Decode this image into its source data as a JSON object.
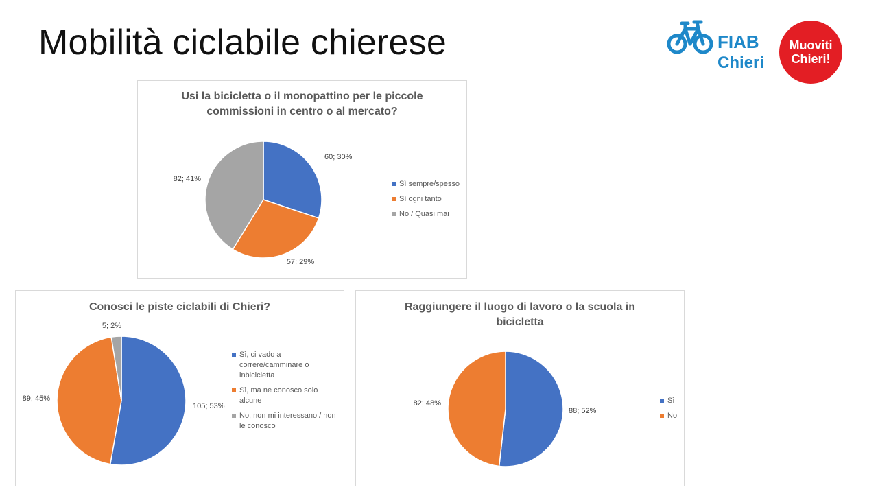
{
  "slide": {
    "title": "Mobilità ciclabile chierese"
  },
  "logo": {
    "brand": "FIAB",
    "city": "Chieri",
    "badge_line1": "Muoviti",
    "badge_line2": "Chieri!",
    "icon": "bicycle-icon",
    "colors": {
      "fiab_blue": "#1e88c9",
      "badge_red": "#e31e24"
    }
  },
  "colors": {
    "blue": "#4472c4",
    "orange": "#ed7d31",
    "gray": "#a5a5a5"
  },
  "chart_data": [
    {
      "type": "pie",
      "title": "Usi la bicicletta o il monopattino per le piccole commissioni in centro o al mercato?",
      "categories": [
        "Sì sempre/spesso",
        "Sì ogni tanto",
        "No / Quasi mai"
      ],
      "values": [
        60,
        57,
        82
      ],
      "percents": [
        30,
        29,
        41
      ],
      "data_labels": [
        "60; 30%",
        "57; 29%",
        "82; 41%"
      ],
      "colors": [
        "#4472c4",
        "#ed7d31",
        "#a5a5a5"
      ],
      "legend_position": "right"
    },
    {
      "type": "pie",
      "title": "Conosci le piste ciclabili di Chieri?",
      "categories": [
        "Sì, ci vado a correre/camminare o inbicicletta",
        "Sì, ma ne conosco solo alcune",
        "No, non mi interessano / non le conosco"
      ],
      "values": [
        105,
        89,
        5
      ],
      "percents": [
        53,
        45,
        2
      ],
      "data_labels": [
        "105; 53%",
        "89; 45%",
        "5; 2%"
      ],
      "colors": [
        "#4472c4",
        "#ed7d31",
        "#a5a5a5"
      ],
      "legend_position": "right"
    },
    {
      "type": "pie",
      "title": "Raggiungere il luogo di lavoro o la scuola in bicicletta",
      "categories": [
        "Sì",
        "No"
      ],
      "values": [
        88,
        82
      ],
      "percents": [
        52,
        48
      ],
      "data_labels": [
        "88; 52%",
        "82; 48%"
      ],
      "colors": [
        "#4472c4",
        "#ed7d31"
      ],
      "legend_position": "right"
    }
  ]
}
